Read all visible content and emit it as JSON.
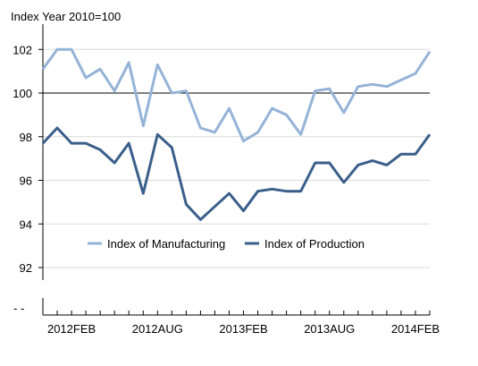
{
  "chart_data": {
    "type": "line",
    "title": "",
    "ylabel": "Index Year 2010=100",
    "xlabel": "",
    "ylim": [
      92,
      103
    ],
    "yticks": [
      "92",
      "94",
      "96",
      "98",
      "100",
      "102"
    ],
    "y_tick_values": [
      92,
      94,
      96,
      98,
      100,
      102
    ],
    "axis_break_label": "- -",
    "reference_line": 100,
    "grid": "horizontal",
    "legend_placement": "lower-left",
    "xtick_labels": [
      {
        "label": "2012FEB",
        "index": 2
      },
      {
        "label": "2012AUG",
        "index": 8
      },
      {
        "label": "2013FEB",
        "index": 14
      },
      {
        "label": "2013AUG",
        "index": 20
      },
      {
        "label": "2014FEB",
        "index": 26
      }
    ],
    "x": [
      "2011DEC",
      "2012JAN",
      "2012FEB",
      "2012MAR",
      "2012APR",
      "2012MAY",
      "2012JUN",
      "2012JUL",
      "2012AUG",
      "2012SEP",
      "2012OCT",
      "2012NOV",
      "2012DEC",
      "2013JAN",
      "2013FEB",
      "2013MAR",
      "2013APR",
      "2013MAY",
      "2013JUN",
      "2013JUL",
      "2013AUG",
      "2013SEP",
      "2013OCT",
      "2013NOV",
      "2013DEC",
      "2014JAN",
      "2014FEB",
      "2014MAR"
    ],
    "series": [
      {
        "name": "Index of Manufacturing",
        "color": "#95b3d7",
        "values": [
          101.1,
          102.0,
          102.0,
          100.7,
          101.1,
          100.1,
          101.4,
          98.5,
          101.3,
          100.0,
          100.1,
          98.4,
          98.2,
          99.3,
          97.8,
          98.2,
          99.3,
          99.0,
          98.1,
          100.1,
          100.2,
          99.1,
          100.3,
          100.4,
          100.3,
          100.6,
          100.9,
          101.9
        ]
      },
      {
        "name": "Index of Production",
        "color": "#3a5f8a",
        "values": [
          97.7,
          98.4,
          97.7,
          97.7,
          97.4,
          96.8,
          97.7,
          95.4,
          98.1,
          97.5,
          94.9,
          94.2,
          94.8,
          95.4,
          94.6,
          95.5,
          95.6,
          95.5,
          95.5,
          96.8,
          96.8,
          95.9,
          96.7,
          96.9,
          96.7,
          97.2,
          97.2,
          98.1
        ]
      }
    ]
  }
}
